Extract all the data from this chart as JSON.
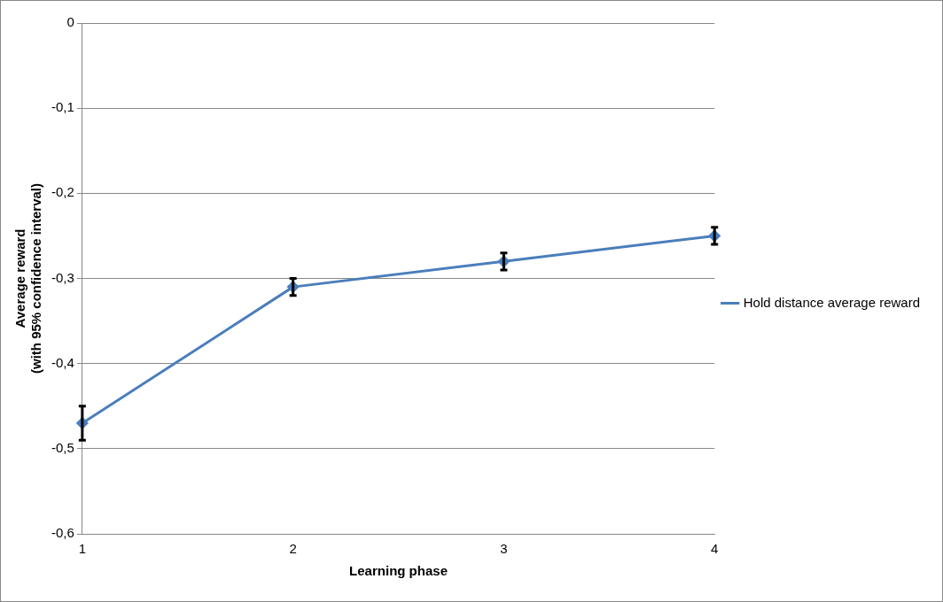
{
  "chart_data": {
    "type": "line",
    "xlabel": "Learning phase",
    "ylabel": "Average reward\n(with 95% confidence interval)",
    "categories": [
      "1",
      "2",
      "3",
      "4"
    ],
    "series": [
      {
        "name": "Hold distance average reward",
        "color": "#4a7ebb",
        "values": [
          -0.47,
          -0.31,
          -0.28,
          -0.25
        ],
        "errors": [
          0.02,
          0.01,
          0.01,
          0.01
        ]
      }
    ],
    "ylim": [
      -0.6,
      0
    ],
    "yticks": [
      {
        "value": -0.6,
        "label": "-0,6"
      },
      {
        "value": -0.5,
        "label": "-0,5"
      },
      {
        "value": -0.4,
        "label": "-0,4"
      },
      {
        "value": -0.3,
        "label": "-0,3"
      },
      {
        "value": -0.2,
        "label": "-0,2"
      },
      {
        "value": -0.1,
        "label": "-0,1"
      },
      {
        "value": 0,
        "label": "0"
      }
    ],
    "grid": "y",
    "legend": "right",
    "marker": "diamond",
    "line_style": "solid"
  }
}
